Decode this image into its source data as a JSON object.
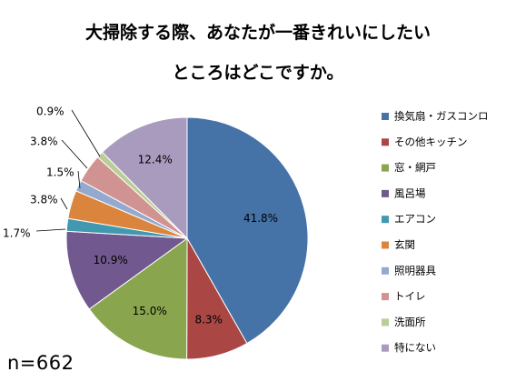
{
  "title": {
    "line1": "大掃除する際、あなたが一番きれいにしたい",
    "line2": "ところはどこですか。"
  },
  "sample_size": "n=662",
  "chart_data": {
    "type": "pie",
    "title": "大掃除する際、あなたが一番きれいにしたいところはどこですか。",
    "legend_position": "right",
    "slices": [
      {
        "label": "換気扇・ガスコンロ",
        "value": 41.8,
        "value_label": "41.8%",
        "color": "#4572A7"
      },
      {
        "label": "その他キッチン",
        "value": 8.3,
        "value_label": "8.3%",
        "color": "#AA4643"
      },
      {
        "label": "窓・網戸",
        "value": 15.0,
        "value_label": "15.0%",
        "color": "#89A54E"
      },
      {
        "label": "風呂場",
        "value": 10.9,
        "value_label": "10.9%",
        "color": "#71588F"
      },
      {
        "label": "エアコン",
        "value": 1.7,
        "value_label": "1.7%",
        "color": "#4198AF"
      },
      {
        "label": "玄関",
        "value": 3.8,
        "value_label": "3.8%",
        "color": "#DB843D"
      },
      {
        "label": "照明器具",
        "value": 1.5,
        "value_label": "1.5%",
        "color": "#93A9CF"
      },
      {
        "label": "トイレ",
        "value": 3.8,
        "value_label": "3.8%",
        "color": "#D19392"
      },
      {
        "label": "洗面所",
        "value": 0.9,
        "value_label": "0.9%",
        "color": "#B9CD96"
      },
      {
        "label": "特にない",
        "value": 12.4,
        "value_label": "12.4%",
        "color": "#A99BBD"
      }
    ]
  }
}
